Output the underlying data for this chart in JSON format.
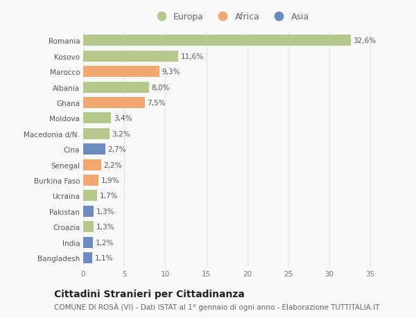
{
  "countries": [
    "Romania",
    "Kosovo",
    "Marocco",
    "Albania",
    "Ghana",
    "Moldova",
    "Macedonia d/N.",
    "Cina",
    "Senegal",
    "Burkina Faso",
    "Ucraina",
    "Pakistan",
    "Croazia",
    "India",
    "Bangladesh"
  ],
  "values": [
    32.6,
    11.6,
    9.3,
    8.0,
    7.5,
    3.4,
    3.2,
    2.7,
    2.2,
    1.9,
    1.7,
    1.3,
    1.3,
    1.2,
    1.1
  ],
  "labels": [
    "32,6%",
    "11,6%",
    "9,3%",
    "8,0%",
    "7,5%",
    "3,4%",
    "3,2%",
    "2,7%",
    "2,2%",
    "1,9%",
    "1,7%",
    "1,3%",
    "1,3%",
    "1,2%",
    "1,1%"
  ],
  "continents": [
    "Europa",
    "Europa",
    "Africa",
    "Europa",
    "Africa",
    "Europa",
    "Europa",
    "Asia",
    "Africa",
    "Africa",
    "Europa",
    "Asia",
    "Europa",
    "Asia",
    "Asia"
  ],
  "colors": {
    "Europa": "#b5c98e",
    "Africa": "#f0a86e",
    "Asia": "#6b8cbf"
  },
  "title": "Cittadini Stranieri per Cittadinanza",
  "subtitle": "COMUNE DI ROSÀ (VI) - Dati ISTAT al 1° gennaio di ogni anno - Elaborazione TUTTITALIA.IT",
  "xlim": [
    0,
    36
  ],
  "background_color": "#f9f9f9",
  "grid_color": "#e8e8e8",
  "bar_height": 0.72,
  "title_fontsize": 10,
  "subtitle_fontsize": 7.5,
  "label_fontsize": 7.5,
  "tick_fontsize": 7.5,
  "legend_fontsize": 9
}
